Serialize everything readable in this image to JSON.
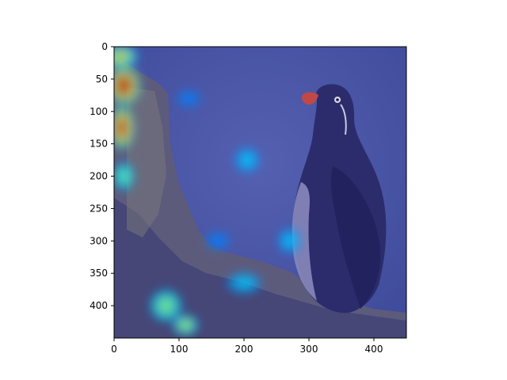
{
  "chart_data": {
    "type": "heatmap",
    "title": "",
    "xlabel": "",
    "ylabel": "",
    "xlim": [
      0,
      450
    ],
    "ylim": [
      450,
      0
    ],
    "x_ticks": [
      0,
      100,
      200,
      300,
      400
    ],
    "y_ticks": [
      0,
      50,
      100,
      150,
      200,
      250,
      300,
      350,
      400
    ],
    "y_axis_inverted": true,
    "grid": false,
    "colormap": "jet",
    "background_image": "bird-on-rock-photo",
    "colors": {
      "sky": "#4a56a8",
      "rock": "#5a5878",
      "bird_body": "#2a2a68",
      "bird_chest": "#8a8ac0",
      "bird_bill": "#c04040"
    },
    "hotspots": [
      {
        "x": 10,
        "y": 15,
        "rx": 30,
        "ry": 20,
        "intensity": 0.7
      },
      {
        "x": 15,
        "y": 60,
        "rx": 30,
        "ry": 35,
        "intensity": 1.0
      },
      {
        "x": 12,
        "y": 125,
        "rx": 22,
        "ry": 40,
        "intensity": 0.95
      },
      {
        "x": 15,
        "y": 200,
        "rx": 18,
        "ry": 25,
        "intensity": 0.5
      },
      {
        "x": 80,
        "y": 400,
        "rx": 28,
        "ry": 28,
        "intensity": 0.55
      },
      {
        "x": 110,
        "y": 430,
        "rx": 22,
        "ry": 18,
        "intensity": 0.6
      },
      {
        "x": 205,
        "y": 175,
        "rx": 22,
        "ry": 22,
        "intensity": 0.35
      },
      {
        "x": 270,
        "y": 300,
        "rx": 20,
        "ry": 22,
        "intensity": 0.35
      },
      {
        "x": 200,
        "y": 365,
        "rx": 30,
        "ry": 18,
        "intensity": 0.35
      },
      {
        "x": 115,
        "y": 80,
        "rx": 20,
        "ry": 14,
        "intensity": 0.25
      },
      {
        "x": 160,
        "y": 300,
        "rx": 20,
        "ry": 15,
        "intensity": 0.2
      }
    ]
  }
}
